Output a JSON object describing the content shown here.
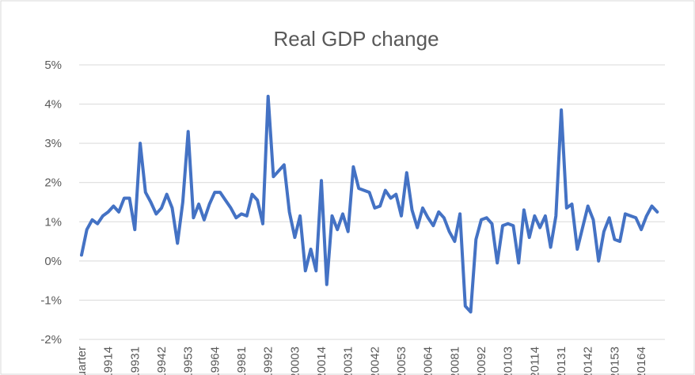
{
  "chart_data": {
    "type": "line",
    "title": "Real GDP change",
    "categories": [
      "Quarter",
      null,
      null,
      null,
      null,
      "19914",
      null,
      null,
      null,
      null,
      "19931",
      null,
      null,
      null,
      null,
      "19942",
      null,
      null,
      null,
      null,
      "19953",
      null,
      null,
      null,
      null,
      "19964",
      null,
      null,
      null,
      null,
      "19981",
      null,
      null,
      null,
      null,
      "19992",
      null,
      null,
      null,
      null,
      "20003",
      null,
      null,
      null,
      null,
      "20014",
      null,
      null,
      null,
      null,
      "20031",
      null,
      null,
      null,
      null,
      "20042",
      null,
      null,
      null,
      null,
      "20053",
      null,
      null,
      null,
      null,
      "20064",
      null,
      null,
      null,
      null,
      "20081",
      null,
      null,
      null,
      null,
      "20092",
      null,
      null,
      null,
      null,
      "20103",
      null,
      null,
      null,
      null,
      "20114",
      null,
      null,
      null,
      null,
      "20131",
      null,
      null,
      null,
      null,
      "20142",
      null,
      null,
      null,
      null,
      "20153",
      null,
      null,
      null,
      null,
      "20164",
      null,
      null,
      null
    ],
    "values": [
      0.15,
      0.8,
      1.05,
      0.95,
      1.15,
      1.25,
      1.4,
      1.25,
      1.6,
      1.6,
      0.8,
      3.0,
      1.75,
      1.5,
      1.2,
      1.35,
      1.7,
      1.35,
      0.45,
      1.5,
      3.3,
      1.1,
      1.45,
      1.05,
      1.45,
      1.75,
      1.75,
      1.55,
      1.35,
      1.1,
      1.2,
      1.15,
      1.7,
      1.55,
      0.95,
      4.2,
      2.15,
      2.3,
      2.45,
      1.25,
      0.6,
      1.15,
      -0.25,
      0.3,
      -0.25,
      2.05,
      -0.6,
      1.15,
      0.8,
      1.2,
      0.75,
      2.4,
      1.85,
      1.8,
      1.75,
      1.35,
      1.4,
      1.8,
      1.6,
      1.7,
      1.15,
      2.25,
      1.3,
      0.85,
      1.35,
      1.1,
      0.9,
      1.25,
      1.1,
      0.75,
      0.5,
      1.2,
      -1.15,
      -1.3,
      0.55,
      1.05,
      1.1,
      0.95,
      -0.05,
      0.9,
      0.95,
      0.9,
      -0.05,
      1.3,
      0.6,
      1.15,
      0.85,
      1.15,
      0.35,
      1.15,
      3.85,
      1.35,
      1.45,
      0.3,
      0.85,
      1.4,
      1.05,
      0.0,
      0.75,
      1.1,
      0.55,
      0.5,
      1.2,
      1.15,
      1.1,
      0.8,
      1.15,
      1.4,
      1.25
    ],
    "color": "#4472c4",
    "ylim": [
      -2,
      5
    ],
    "yticks": [
      {
        "value": -2,
        "label": "-2%"
      },
      {
        "value": -1,
        "label": "-1%"
      },
      {
        "value": 0,
        "label": "0%"
      },
      {
        "value": 1,
        "label": "1%"
      },
      {
        "value": 2,
        "label": "2%"
      },
      {
        "value": 3,
        "label": "3%"
      },
      {
        "value": 4,
        "label": "4%"
      },
      {
        "value": 5,
        "label": "5%"
      }
    ],
    "grid": true
  }
}
